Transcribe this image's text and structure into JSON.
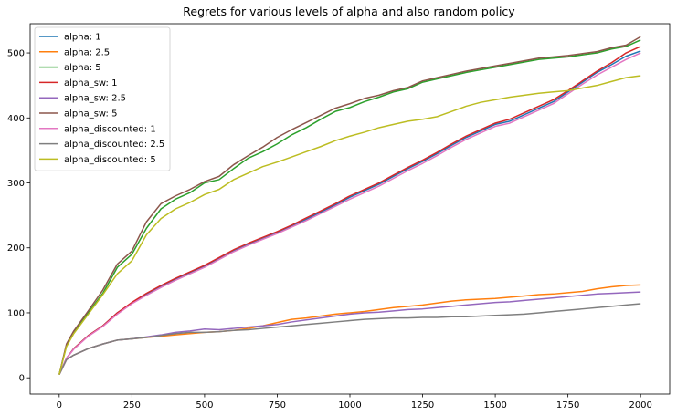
{
  "chart_data": {
    "type": "line",
    "title": "Regrets for various levels of alpha and also random policy",
    "xlabel": "",
    "ylabel": "",
    "xlim": [
      -100,
      2100
    ],
    "ylim": [
      -25,
      545
    ],
    "x_ticks": [
      0,
      250,
      500,
      750,
      1000,
      1250,
      1500,
      1750,
      2000
    ],
    "y_ticks": [
      0,
      100,
      200,
      300,
      400,
      500
    ],
    "grid": false,
    "legend_position": "top-left",
    "series": [
      {
        "name": "alpha: 1",
        "color": "#1f77b4",
        "x": [
          0,
          25,
          50,
          100,
          150,
          200,
          250,
          300,
          350,
          400,
          450,
          500,
          550,
          600,
          650,
          700,
          750,
          800,
          850,
          900,
          950,
          1000,
          1050,
          1100,
          1150,
          1200,
          1250,
          1300,
          1350,
          1400,
          1450,
          1500,
          1550,
          1600,
          1650,
          1700,
          1750,
          1800,
          1850,
          1900,
          1950,
          2000
        ],
        "y": [
          5,
          30,
          45,
          65,
          80,
          100,
          115,
          128,
          140,
          152,
          162,
          172,
          183,
          195,
          205,
          214,
          223,
          233,
          244,
          255,
          266,
          278,
          288,
          298,
          310,
          322,
          333,
          345,
          358,
          370,
          380,
          390,
          395,
          405,
          415,
          425,
          440,
          455,
          470,
          482,
          495,
          503
        ]
      },
      {
        "name": "alpha: 2.5",
        "color": "#ff7f0e",
        "x": [
          0,
          25,
          50,
          100,
          150,
          200,
          250,
          300,
          350,
          400,
          450,
          500,
          550,
          600,
          650,
          700,
          750,
          800,
          850,
          900,
          950,
          1000,
          1050,
          1100,
          1150,
          1200,
          1250,
          1300,
          1350,
          1400,
          1450,
          1500,
          1550,
          1600,
          1650,
          1700,
          1750,
          1800,
          1850,
          1900,
          1950,
          2000
        ],
        "y": [
          5,
          28,
          35,
          45,
          52,
          58,
          60,
          62,
          64,
          66,
          68,
          70,
          71,
          73,
          76,
          80,
          85,
          90,
          92,
          95,
          98,
          100,
          102,
          105,
          108,
          110,
          112,
          115,
          118,
          120,
          121,
          122,
          124,
          126,
          128,
          129,
          131,
          133,
          137,
          140,
          142,
          143
        ]
      },
      {
        "name": "alpha: 5",
        "color": "#2ca02c",
        "x": [
          0,
          25,
          50,
          100,
          150,
          200,
          250,
          300,
          350,
          400,
          450,
          500,
          550,
          600,
          650,
          700,
          750,
          800,
          850,
          900,
          950,
          1000,
          1050,
          1100,
          1150,
          1200,
          1250,
          1300,
          1350,
          1400,
          1450,
          1500,
          1550,
          1600,
          1650,
          1700,
          1750,
          1800,
          1850,
          1900,
          1950,
          2000
        ],
        "y": [
          5,
          50,
          70,
          100,
          130,
          170,
          190,
          230,
          260,
          275,
          285,
          300,
          305,
          322,
          338,
          348,
          360,
          374,
          385,
          398,
          410,
          416,
          425,
          432,
          440,
          445,
          455,
          460,
          465,
          470,
          474,
          478,
          482,
          486,
          490,
          492,
          494,
          497,
          500,
          506,
          510,
          520
        ]
      },
      {
        "name": "alpha_sw: 1",
        "color": "#d62728",
        "x": [
          0,
          25,
          50,
          100,
          150,
          200,
          250,
          300,
          350,
          400,
          450,
          500,
          550,
          600,
          650,
          700,
          750,
          800,
          850,
          900,
          950,
          1000,
          1050,
          1100,
          1150,
          1200,
          1250,
          1300,
          1350,
          1400,
          1450,
          1500,
          1550,
          1600,
          1650,
          1700,
          1750,
          1800,
          1850,
          1900,
          1950,
          2000
        ],
        "y": [
          5,
          30,
          45,
          65,
          80,
          100,
          116,
          130,
          142,
          153,
          163,
          173,
          185,
          197,
          207,
          216,
          225,
          235,
          246,
          257,
          268,
          280,
          290,
          300,
          312,
          324,
          335,
          347,
          360,
          372,
          382,
          392,
          398,
          408,
          418,
          428,
          442,
          457,
          472,
          485,
          500,
          510
        ]
      },
      {
        "name": "alpha_sw: 2.5",
        "color": "#9467bd",
        "x": [
          0,
          25,
          50,
          100,
          150,
          200,
          250,
          300,
          350,
          400,
          450,
          500,
          550,
          600,
          650,
          700,
          750,
          800,
          850,
          900,
          950,
          1000,
          1050,
          1100,
          1150,
          1200,
          1250,
          1300,
          1350,
          1400,
          1450,
          1500,
          1550,
          1600,
          1650,
          1700,
          1750,
          1800,
          1850,
          1900,
          1950,
          2000
        ],
        "y": [
          5,
          28,
          35,
          45,
          52,
          58,
          60,
          63,
          66,
          70,
          72,
          75,
          74,
          76,
          78,
          80,
          82,
          86,
          89,
          92,
          95,
          98,
          100,
          101,
          103,
          105,
          106,
          108,
          110,
          112,
          114,
          116,
          117,
          119,
          121,
          123,
          125,
          127,
          129,
          130,
          131,
          132
        ]
      },
      {
        "name": "alpha_sw: 5",
        "color": "#8c564b",
        "x": [
          0,
          25,
          50,
          100,
          150,
          200,
          250,
          300,
          350,
          400,
          450,
          500,
          550,
          600,
          650,
          700,
          750,
          800,
          850,
          900,
          950,
          1000,
          1050,
          1100,
          1150,
          1200,
          1250,
          1300,
          1350,
          1400,
          1450,
          1500,
          1550,
          1600,
          1650,
          1700,
          1750,
          1800,
          1850,
          1900,
          1950,
          2000
        ],
        "y": [
          5,
          52,
          72,
          103,
          135,
          175,
          195,
          240,
          268,
          280,
          290,
          302,
          310,
          328,
          342,
          355,
          370,
          382,
          393,
          404,
          415,
          422,
          430,
          435,
          442,
          447,
          457,
          462,
          467,
          472,
          476,
          480,
          484,
          488,
          492,
          494,
          496,
          499,
          502,
          508,
          512,
          525
        ]
      },
      {
        "name": "alpha_discounted: 1",
        "color": "#e377c2",
        "x": [
          0,
          25,
          50,
          100,
          150,
          200,
          250,
          300,
          350,
          400,
          450,
          500,
          550,
          600,
          650,
          700,
          750,
          800,
          850,
          900,
          950,
          1000,
          1050,
          1100,
          1150,
          1200,
          1250,
          1300,
          1350,
          1400,
          1450,
          1500,
          1550,
          1600,
          1650,
          1700,
          1750,
          1800,
          1850,
          1900,
          1950,
          2000
        ],
        "y": [
          5,
          30,
          44,
          64,
          79,
          98,
          114,
          127,
          139,
          150,
          160,
          170,
          182,
          194,
          204,
          213,
          222,
          232,
          242,
          253,
          264,
          275,
          285,
          295,
          307,
          319,
          330,
          342,
          355,
          367,
          377,
          387,
          392,
          402,
          412,
          422,
          437,
          452,
          466,
          478,
          490,
          500
        ]
      },
      {
        "name": "alpha_discounted: 2.5",
        "color": "#7f7f7f",
        "x": [
          0,
          25,
          50,
          100,
          150,
          200,
          250,
          300,
          350,
          400,
          450,
          500,
          550,
          600,
          650,
          700,
          750,
          800,
          850,
          900,
          950,
          1000,
          1050,
          1100,
          1150,
          1200,
          1250,
          1300,
          1350,
          1400,
          1450,
          1500,
          1550,
          1600,
          1650,
          1700,
          1750,
          1800,
          1850,
          1900,
          1950,
          2000
        ],
        "y": [
          5,
          28,
          35,
          45,
          52,
          58,
          60,
          62,
          65,
          68,
          70,
          70,
          71,
          73,
          74,
          76,
          78,
          80,
          82,
          84,
          86,
          88,
          90,
          91,
          92,
          92,
          93,
          93,
          94,
          94,
          95,
          96,
          97,
          98,
          100,
          102,
          104,
          106,
          108,
          110,
          112,
          114
        ]
      },
      {
        "name": "alpha_discounted: 5",
        "color": "#bcbd22",
        "x": [
          0,
          25,
          50,
          100,
          150,
          200,
          250,
          300,
          350,
          400,
          450,
          500,
          550,
          600,
          650,
          700,
          750,
          800,
          850,
          900,
          950,
          1000,
          1050,
          1100,
          1150,
          1200,
          1250,
          1300,
          1350,
          1400,
          1450,
          1500,
          1550,
          1600,
          1650,
          1700,
          1750,
          1800,
          1850,
          1900,
          1950,
          2000
        ],
        "y": [
          5,
          48,
          68,
          98,
          128,
          160,
          180,
          220,
          245,
          260,
          270,
          282,
          290,
          305,
          315,
          325,
          332,
          340,
          348,
          356,
          365,
          372,
          378,
          385,
          390,
          395,
          398,
          402,
          410,
          418,
          424,
          428,
          432,
          435,
          438,
          440,
          442,
          446,
          450,
          456,
          462,
          465
        ]
      }
    ]
  }
}
